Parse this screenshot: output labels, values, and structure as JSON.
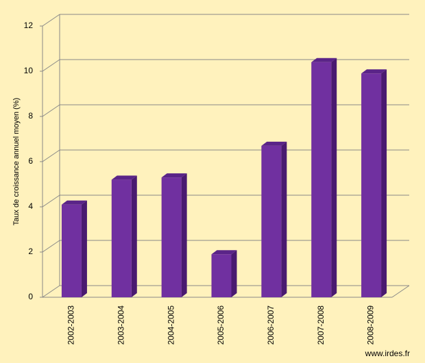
{
  "chart_data": {
    "type": "bar3d",
    "ylabel": "Taux de croissance annuel moyen (%)",
    "categories": [
      "2002-2003",
      "2003-2004",
      "2004-2005",
      "2005-2006",
      "2006-2007",
      "2007-2008",
      "2008-2009"
    ],
    "values": [
      4.1,
      5.2,
      5.3,
      1.9,
      6.7,
      10.4,
      9.9
    ],
    "color": "#7030a0",
    "ylim": [
      0,
      12
    ],
    "yticks": [
      0,
      2,
      4,
      6,
      8,
      10,
      12
    ],
    "grid": true,
    "source": "www.irdes.fr"
  }
}
